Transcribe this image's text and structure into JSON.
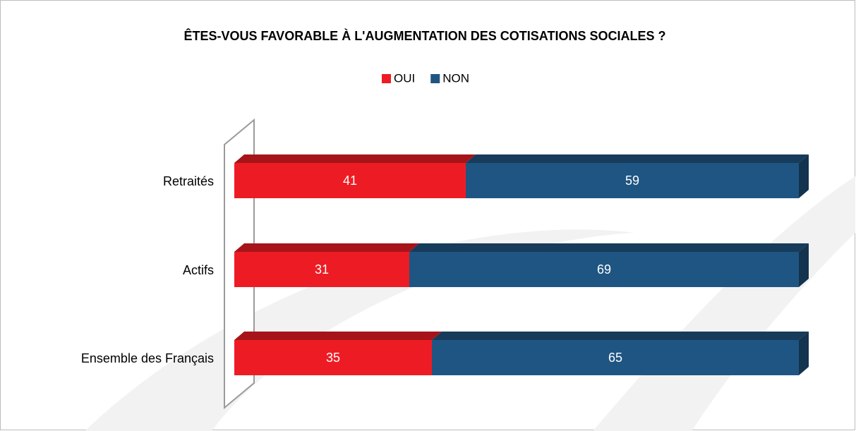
{
  "chart_data": {
    "type": "stacked-bar-horizontal",
    "title": "ÊTES-VOUS FAVORABLE À L'AUGMENTATION DES COTISATIONS SOCIALES ?",
    "categories": [
      "Retraités",
      "Actifs",
      "Ensemble des Français"
    ],
    "series": [
      {
        "name": "OUI",
        "color": "#ed1c24",
        "values": [
          41,
          31,
          35
        ]
      },
      {
        "name": "NON",
        "color": "#1f5582",
        "values": [
          59,
          69,
          65
        ]
      }
    ],
    "xlim": [
      0,
      100
    ],
    "legend": "top"
  }
}
